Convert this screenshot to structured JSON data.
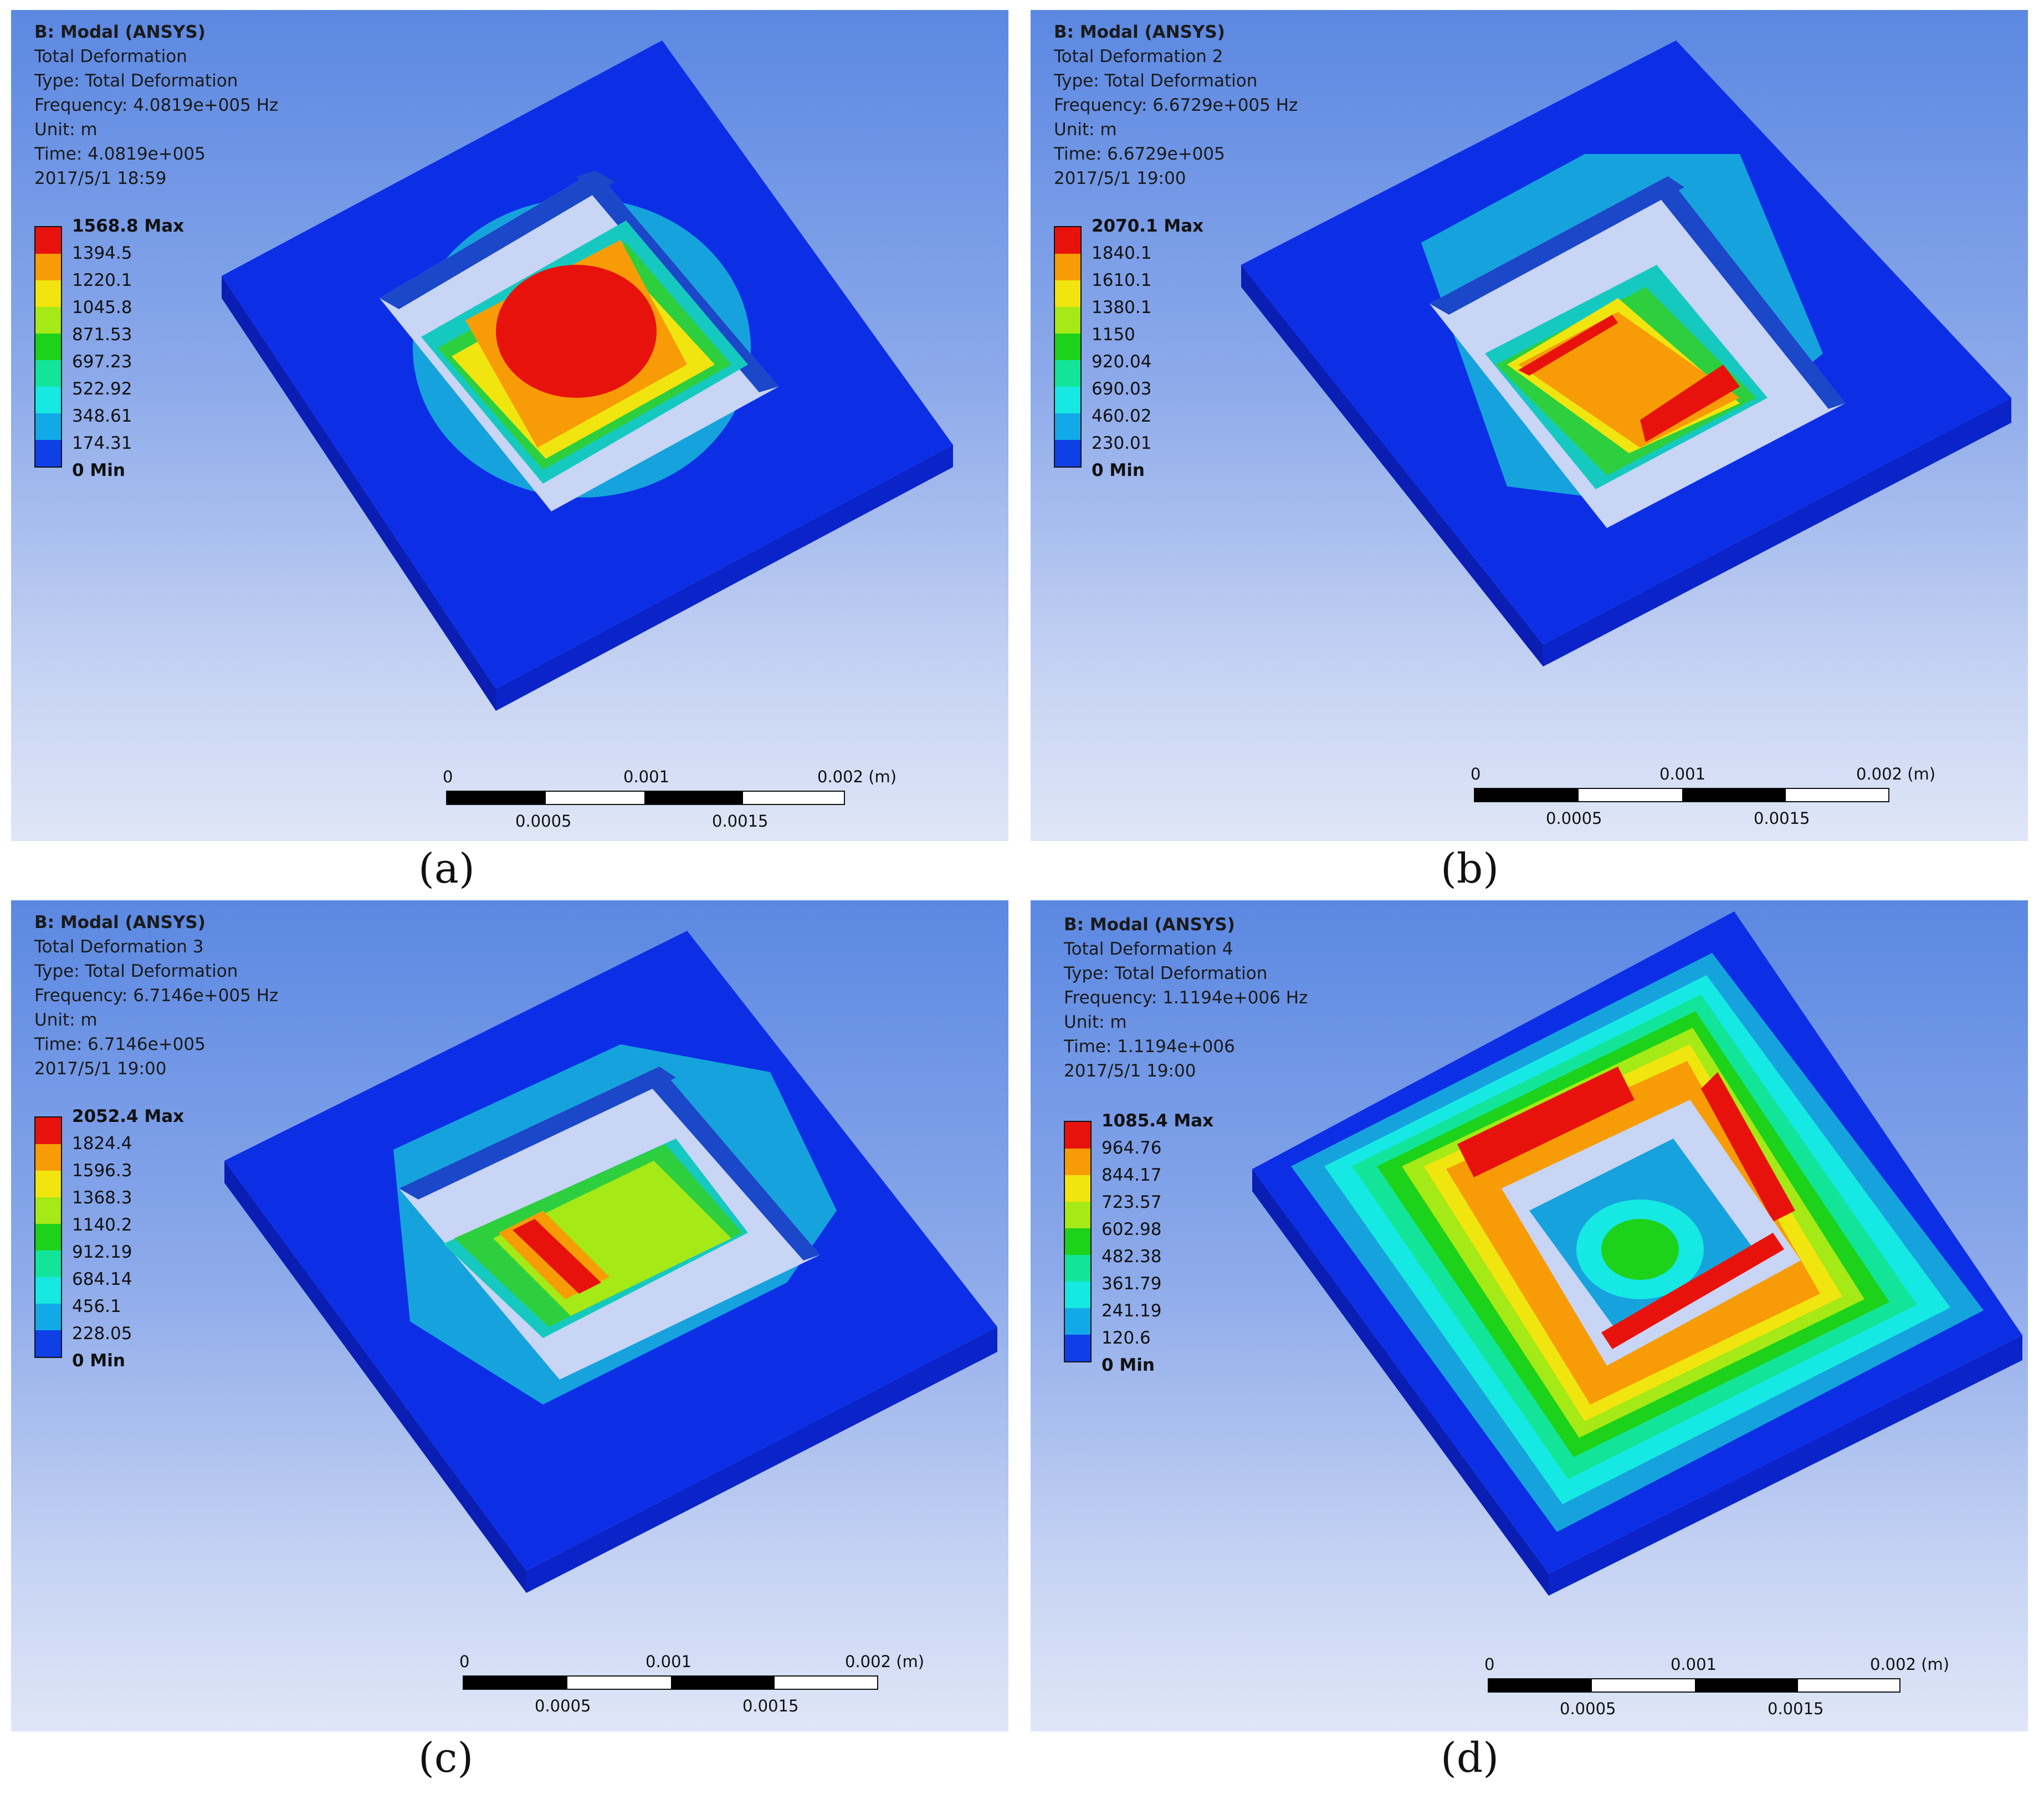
{
  "panels": [
    {
      "caption": "(a)",
      "info": [
        "B: Modal (ANSYS)",
        "Total Deformation",
        "Type: Total Deformation",
        "Frequency: 4.0819e+005 Hz",
        "Unit: m",
        "Time: 4.0819e+005",
        "2017/5/1 18:59"
      ],
      "legend": [
        "1568.8 Max",
        "1394.5",
        "1220.1",
        "1045.8",
        "871.53",
        "697.23",
        "522.92",
        "348.61",
        "174.31",
        "0 Min"
      ],
      "scale": {
        "t0": "0",
        "t1": "0.001",
        "t2": "0.002 (m)",
        "b1": "0.0005",
        "b2": "0.0015"
      }
    },
    {
      "caption": "(b)",
      "info": [
        "B: Modal (ANSYS)",
        "Total Deformation  2",
        "Type: Total Deformation",
        "Frequency: 6.6729e+005 Hz",
        "Unit: m",
        "Time: 6.6729e+005",
        "2017/5/1 19:00"
      ],
      "legend": [
        "2070.1 Max",
        "1840.1",
        "1610.1",
        "1380.1",
        "1150",
        "920.04",
        "690.03",
        "460.02",
        "230.01",
        "0 Min"
      ],
      "scale": {
        "t0": "0",
        "t1": "0.001",
        "t2": "0.002 (m)",
        "b1": "0.0005",
        "b2": "0.0015"
      }
    },
    {
      "caption": "(c)",
      "info": [
        "B: Modal (ANSYS)",
        "Total Deformation 3",
        "Type: Total Deformation",
        "Frequency: 6.7146e+005 Hz",
        "Unit: m",
        "Time: 6.7146e+005",
        "2017/5/1 19:00"
      ],
      "legend": [
        "2052.4 Max",
        "1824.4",
        "1596.3",
        "1368.3",
        "1140.2",
        "912.19",
        "684.14",
        "456.1",
        "228.05",
        "0 Min"
      ],
      "scale": {
        "t0": "0",
        "t1": "0.001",
        "t2": "0.002 (m)",
        "b1": "0.0005",
        "b2": "0.0015"
      }
    },
    {
      "caption": "(d)",
      "info": [
        "B: Modal (ANSYS)",
        "Total Deformation 4",
        "Type: Total Deformation",
        "Frequency: 1.1194e+006 Hz",
        "Unit: m",
        "Time: 1.1194e+006",
        "2017/5/1 19:00"
      ],
      "legend": [
        "1085.4 Max",
        "964.76",
        "844.17",
        "723.57",
        "602.98",
        "482.38",
        "361.79",
        "241.19",
        "120.6",
        "0 Min"
      ],
      "scale": {
        "t0": "0",
        "t1": "0.001",
        "t2": "0.002 (m)",
        "b1": "0.0005",
        "b2": "0.0015"
      }
    }
  ],
  "legend_colors": [
    "#e8120c",
    "#f79c07",
    "#f1e510",
    "#a5e916",
    "#1dd21a",
    "#12e59a",
    "#16e8e3",
    "#12a9e8",
    "#0f3fe6"
  ]
}
